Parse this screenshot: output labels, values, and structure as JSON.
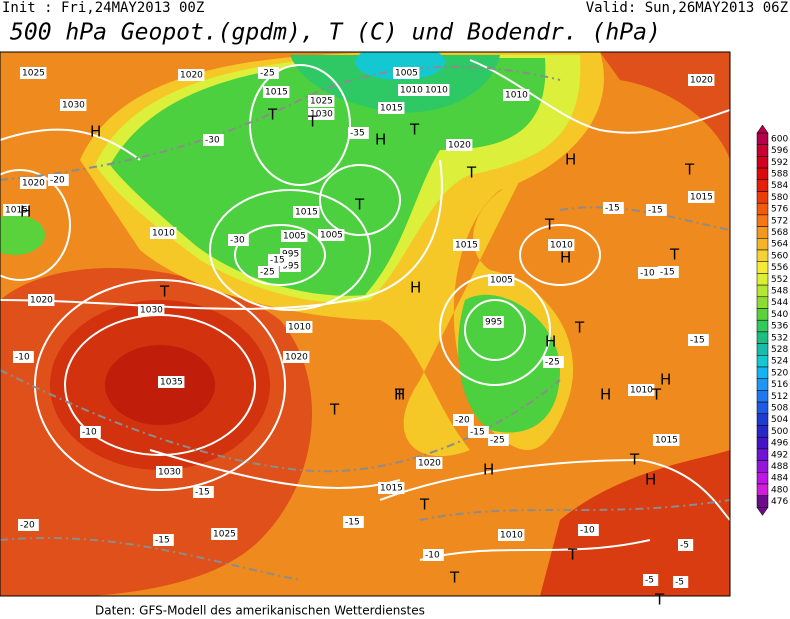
{
  "header": {
    "init": "Init : Fri,24MAY2013 00Z",
    "valid": "Valid: Sun,26MAY2013 06Z",
    "title": "500 hPa Geopot.(gpdm), T (C) und Bodendr. (hPa)"
  },
  "footer": "Daten: GFS-Modell des amerikanischen Wetterdienstes",
  "colorbar": {
    "labels": [
      600,
      596,
      592,
      588,
      584,
      580,
      576,
      572,
      568,
      564,
      560,
      556,
      552,
      548,
      544,
      540,
      536,
      532,
      528,
      524,
      520,
      516,
      512,
      508,
      504,
      500,
      496,
      492,
      488,
      484,
      480,
      476
    ],
    "colors": [
      "#b4004b",
      "#c80032",
      "#d2001e",
      "#dc0a0a",
      "#e61e0a",
      "#eb3c0a",
      "#f05a0a",
      "#f57814",
      "#f5961e",
      "#f5b428",
      "#f5d232",
      "#f5eb32",
      "#dcf032",
      "#b4e632",
      "#8cdc32",
      "#5ad23c",
      "#32c85a",
      "#1ebe82",
      "#14beaa",
      "#14c8d2",
      "#14b4f0",
      "#1e96f5",
      "#1e78f0",
      "#1e5ae6",
      "#1e3cd2",
      "#2828c8",
      "#4614c8",
      "#6e14d2",
      "#9614dc",
      "#be14e6",
      "#d21edc",
      "#6e0a8c"
    ]
  },
  "map_labels": [
    "1025",
    "1020",
    "1030",
    "1015",
    "1020",
    "1025",
    "1030",
    "1005",
    "1010",
    "1015",
    "1005",
    "1010",
    "1015",
    "1020",
    "1010",
    "1005",
    "995",
    "995",
    "1030",
    "1035",
    "1030",
    "1025",
    "1010",
    "1020",
    "1015",
    "1005",
    "995",
    "1010",
    "1010",
    "1015",
    "1020",
    "1015",
    "1010",
    "1020",
    "1015",
    "1020",
    "1010",
    "1015",
    "-25",
    "-30",
    "-35",
    "-30",
    "-25",
    "-20",
    "-15",
    "-20",
    "-15",
    "-10",
    "-10",
    "-15",
    "-15",
    "-10",
    "-15",
    "-20",
    "-25",
    "-25",
    "-15",
    "-15",
    "-10",
    "-5",
    "-5",
    "-5",
    "-15",
    "-10",
    "-15",
    "H",
    "H",
    "T",
    "T",
    "T",
    "T",
    "H",
    "T",
    "H",
    "T",
    "H",
    "T",
    "H",
    "T",
    "H",
    "T",
    "T",
    "H",
    "T",
    "H",
    "T",
    "H",
    "H",
    "T",
    "T",
    "T",
    "H",
    "T",
    "T",
    "T"
  ]
}
